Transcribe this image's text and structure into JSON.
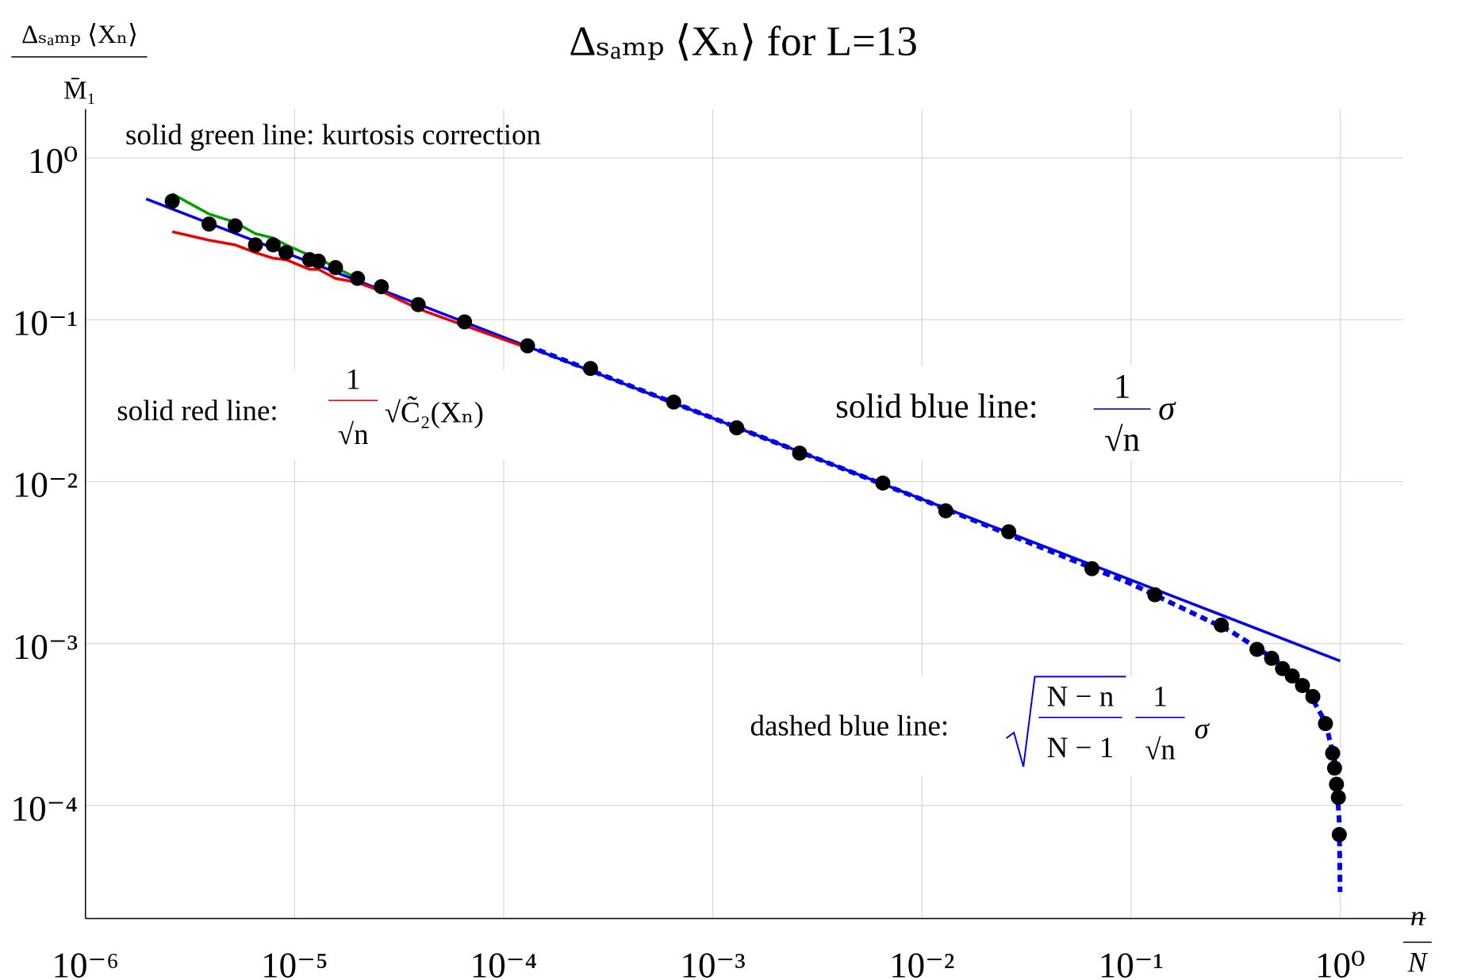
{
  "chart_data": {
    "type": "line",
    "title": "Δₛₐₘₚ ⟨Xₙ⟩ for L=13",
    "y_label": {
      "numerator": "Δₛₐₘₚ ⟨Xₙ⟩",
      "denominator": "M̄₁"
    },
    "x_label": {
      "numerator": "n",
      "denominator": "N"
    },
    "log_x": true,
    "log_y": true,
    "grid": true,
    "xlim": [
      1e-06,
      2
    ],
    "ylim": [
      2e-05,
      2
    ],
    "xticks": [
      {
        "value": 1e-06,
        "label": "10⁻⁶"
      },
      {
        "value": 1e-05,
        "label": "10⁻⁵"
      },
      {
        "value": 0.0001,
        "label": "10⁻⁴"
      },
      {
        "value": 0.001,
        "label": "10⁻³"
      },
      {
        "value": 0.01,
        "label": "10⁻²"
      },
      {
        "value": 0.1,
        "label": "10⁻¹"
      },
      {
        "value": 1,
        "label": "10⁰"
      }
    ],
    "yticks": [
      {
        "value": 0.0001,
        "label": "10⁻⁴"
      },
      {
        "value": 0.001,
        "label": "10⁻³"
      },
      {
        "value": 0.01,
        "label": "10⁻²"
      },
      {
        "value": 0.1,
        "label": "10⁻¹"
      },
      {
        "value": 1,
        "label": "10⁰"
      }
    ],
    "series": [
      {
        "style": "solid",
        "color": "#0000ee",
        "x": [
          1.95e-06,
          1
        ],
        "values": [
          0.558,
          0.00078
        ]
      },
      {
        "style": "dashed",
        "color": "#0000ee",
        "x": [
          0.00013,
          0.001,
          0.01,
          0.1,
          0.3,
          0.5,
          0.7,
          0.85,
          0.95,
          0.99,
          0.9986
        ],
        "values": [
          0.069,
          0.0247,
          0.00776,
          0.00234,
          0.00119,
          0.00078,
          0.00051,
          0.000327,
          0.000179,
          7.84e-05,
          2.92e-05
        ]
      },
      {
        "style": "solid",
        "color": "#00a000",
        "x": [
          2.6e-06,
          3.9e-06,
          5.2e-06,
          6.5e-06,
          7.9e-06,
          9.1e-06,
          1.18e-05,
          1.3e-05,
          1.57e-05,
          2e-05
        ],
        "values": [
          0.6,
          0.45,
          0.4,
          0.34,
          0.32,
          0.29,
          0.25,
          0.24,
          0.21,
          0.18
        ]
      },
      {
        "style": "solid",
        "color": "#ee0000",
        "x": [
          2.6e-06,
          3.9e-06,
          5.2e-06,
          6.5e-06,
          7.9e-06,
          9.1e-06,
          1.18e-05,
          1.3e-05,
          1.57e-05,
          2e-05,
          2.6e-05,
          3.9e-05,
          6.5e-05,
          0.00013
        ],
        "values": [
          0.35,
          0.31,
          0.29,
          0.26,
          0.24,
          0.235,
          0.205,
          0.205,
          0.18,
          0.17,
          0.15,
          0.117,
          0.092,
          0.067
        ]
      },
      {
        "style": "marker",
        "color": "#000000",
        "x": [
          2.6e-06,
          3.9e-06,
          5.2e-06,
          6.5e-06,
          7.9e-06,
          9.1e-06,
          1.18e-05,
          1.3e-05,
          1.57e-05,
          2e-05,
          2.6e-05,
          3.9e-05,
          6.5e-05,
          0.00013,
          0.00026,
          0.00065,
          0.0013,
          0.0026,
          0.0065,
          0.013,
          0.026,
          0.065,
          0.13,
          0.27,
          0.4,
          0.47,
          0.53,
          0.59,
          0.66,
          0.74,
          0.85,
          0.92,
          0.94,
          0.96,
          0.98,
          0.99
        ],
        "values": [
          0.54,
          0.39,
          0.38,
          0.29,
          0.29,
          0.26,
          0.235,
          0.23,
          0.21,
          0.18,
          0.16,
          0.124,
          0.097,
          0.069,
          0.05,
          0.031,
          0.0215,
          0.015,
          0.0098,
          0.0066,
          0.0049,
          0.0029,
          0.002,
          0.0013,
          0.00092,
          0.00081,
          0.0007,
          0.00063,
          0.00055,
          0.00047,
          0.00032,
          0.00021,
          0.00017,
          0.000135,
          0.000112,
          6.6e-05
        ]
      }
    ],
    "annotations": {
      "green": {
        "color": "#00a000",
        "text": "solid green line: kurtosis correction"
      },
      "red": {
        "color": "#ee0000",
        "text": "solid red line:",
        "numerator": "1",
        "denominator": "√n",
        "factor": "√C̃₂(Xₙ)"
      },
      "blue": {
        "color": "#0000ee",
        "text": "solid blue line:",
        "numerator": "1",
        "denominator": "√n",
        "factor": "σ"
      },
      "dashed": {
        "color": "#0000ee",
        "text": "dashed blue line:",
        "root_numerator": "N − n",
        "root_denominator": "N − 1",
        "numerator": "1",
        "denominator": "√n",
        "factor": "σ"
      }
    }
  }
}
